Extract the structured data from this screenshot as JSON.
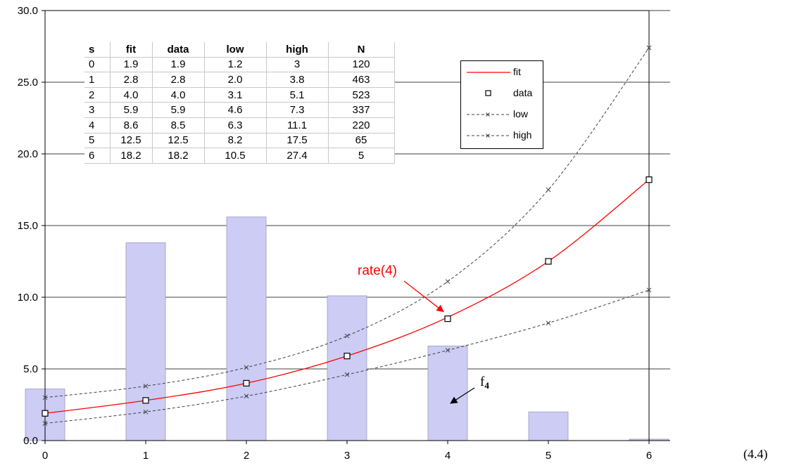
{
  "chart_data": {
    "type": "bar+line",
    "xlim": [
      0,
      6
    ],
    "ylim": [
      0,
      30
    ],
    "x": [
      0,
      1,
      2,
      3,
      4,
      5,
      6
    ],
    "x_tick_labels": [
      "0",
      "1",
      "2",
      "3",
      "4",
      "5",
      "6"
    ],
    "y_tick_labels": [
      "0.0",
      "5.0",
      "10.0",
      "15.0",
      "20.0",
      "25.0",
      "30.0"
    ],
    "y_ticks": [
      0,
      5,
      10,
      15,
      20,
      25,
      30
    ],
    "grid": true,
    "bars": [
      3.6,
      13.8,
      15.6,
      10.1,
      6.6,
      2.0,
      0.1
    ],
    "bar_color": "#ccccf5",
    "series": [
      {
        "name": "fit",
        "color": "#ff0000",
        "values": [
          1.9,
          2.8,
          4.0,
          5.9,
          8.6,
          12.5,
          18.2
        ]
      },
      {
        "name": "data",
        "color": "#000000",
        "values": [
          1.9,
          2.8,
          4.0,
          5.9,
          8.5,
          12.5,
          18.2
        ]
      },
      {
        "name": "low",
        "color": "#404040",
        "values": [
          1.2,
          2.0,
          3.1,
          4.6,
          6.3,
          8.2,
          10.5
        ]
      },
      {
        "name": "high",
        "color": "#404040",
        "values": [
          3,
          3.8,
          5.1,
          7.3,
          11.1,
          17.5,
          27.4
        ]
      }
    ],
    "legend_position": "top-right",
    "annotations": [
      {
        "text": "rate(4)",
        "color": "#ff0000",
        "target_x": 4,
        "target_y": 8.6
      },
      {
        "text": "f",
        "subscript": "4",
        "color": "#000000",
        "target_x": 4,
        "target_y": 3.0
      }
    ],
    "table": {
      "headers": [
        "s",
        "fit",
        "data",
        "low",
        "high",
        "N"
      ],
      "rows": [
        [
          "0",
          "1.9",
          "1.9",
          "1.2",
          "3",
          "120"
        ],
        [
          "1",
          "2.8",
          "2.8",
          "2.0",
          "3.8",
          "463"
        ],
        [
          "2",
          "4.0",
          "4.0",
          "3.1",
          "5.1",
          "523"
        ],
        [
          "3",
          "5.9",
          "5.9",
          "4.6",
          "7.3",
          "337"
        ],
        [
          "4",
          "8.6",
          "8.5",
          "6.3",
          "11.1",
          "220"
        ],
        [
          "5",
          "12.5",
          "12.5",
          "8.2",
          "17.5",
          "65"
        ],
        [
          "6",
          "18.2",
          "18.2",
          "10.5",
          "27.4",
          "5"
        ]
      ]
    }
  },
  "equation_label": "(4.4)"
}
